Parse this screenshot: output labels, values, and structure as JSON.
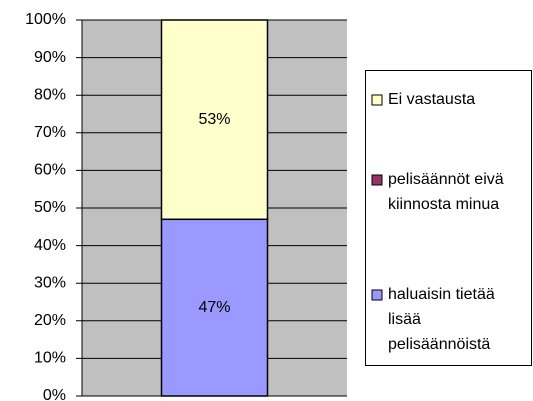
{
  "chart_data": {
    "type": "stacked_bar",
    "categories": [
      null
    ],
    "series": [
      {
        "name": "haluaisin tietää lisää pelisäännöistä",
        "color": "#9999ff",
        "values": [
          47
        ],
        "value_labels": [
          "47%"
        ]
      },
      {
        "name": "pelisäännöt eivä kiinnosta minua",
        "color": "#993366",
        "values": [
          0
        ],
        "value_labels": [
          "0"
        ]
      },
      {
        "name": "Ei vastausta",
        "color": "#ffffcc",
        "values": [
          53
        ],
        "value_labels": [
          "53%"
        ]
      }
    ],
    "ylim": [
      0,
      100
    ],
    "yticks": [
      {
        "value": 0,
        "label": "0%"
      },
      {
        "value": 10,
        "label": "10%"
      },
      {
        "value": 20,
        "label": "20%"
      },
      {
        "value": 30,
        "label": "30%"
      },
      {
        "value": 40,
        "label": "40%"
      },
      {
        "value": 50,
        "label": "50%"
      },
      {
        "value": 60,
        "label": "60%"
      },
      {
        "value": 70,
        "label": "70%"
      },
      {
        "value": 80,
        "label": "80%"
      },
      {
        "value": 90,
        "label": "90%"
      },
      {
        "value": 100,
        "label": "100%"
      }
    ],
    "grid": true,
    "legend": "right"
  }
}
